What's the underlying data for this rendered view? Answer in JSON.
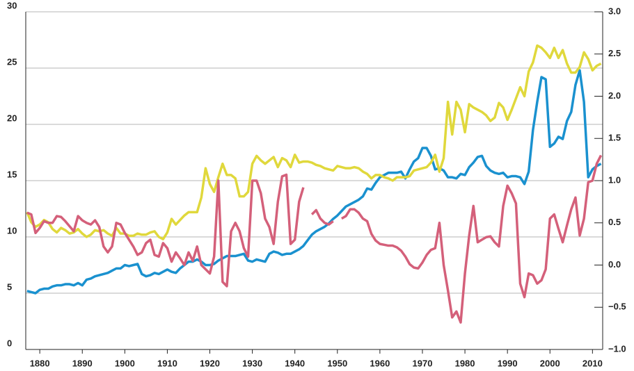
{
  "chart_data": {
    "type": "line",
    "x": [
      1877,
      1878,
      1879,
      1880,
      1881,
      1882,
      1883,
      1884,
      1885,
      1886,
      1887,
      1888,
      1889,
      1890,
      1891,
      1892,
      1893,
      1894,
      1895,
      1896,
      1897,
      1898,
      1899,
      1900,
      1901,
      1902,
      1903,
      1904,
      1905,
      1906,
      1907,
      1908,
      1909,
      1910,
      1911,
      1912,
      1913,
      1914,
      1915,
      1916,
      1917,
      1918,
      1919,
      1920,
      1921,
      1922,
      1923,
      1924,
      1925,
      1926,
      1927,
      1928,
      1929,
      1930,
      1931,
      1932,
      1933,
      1934,
      1935,
      1936,
      1937,
      1938,
      1939,
      1940,
      1941,
      1942,
      1943,
      1944,
      1945,
      1946,
      1947,
      1948,
      1949,
      1950,
      1951,
      1952,
      1953,
      1954,
      1955,
      1956,
      1957,
      1958,
      1959,
      1960,
      1961,
      1962,
      1963,
      1964,
      1965,
      1966,
      1967,
      1968,
      1969,
      1970,
      1971,
      1972,
      1973,
      1974,
      1975,
      1976,
      1977,
      1978,
      1979,
      1980,
      1981,
      1982,
      1983,
      1984,
      1985,
      1986,
      1987,
      1988,
      1989,
      1990,
      1991,
      1992,
      1993,
      1994,
      1995,
      1996,
      1997,
      1998,
      1999,
      2000,
      2001,
      2002,
      2003,
      2004,
      2005,
      2006,
      2007,
      2008,
      2009,
      2010,
      2011,
      2012
    ],
    "series": [
      {
        "color": "#1a91cf",
        "values": [
          5.2,
          5.1,
          5.0,
          5.3,
          5.4,
          5.4,
          5.6,
          5.7,
          5.7,
          5.8,
          5.8,
          5.7,
          5.9,
          5.7,
          6.2,
          6.3,
          6.5,
          6.6,
          6.7,
          6.8,
          7.0,
          7.2,
          7.2,
          7.5,
          7.4,
          7.5,
          7.6,
          6.7,
          6.5,
          6.6,
          6.8,
          6.7,
          6.9,
          7.1,
          6.9,
          6.8,
          7.2,
          7.5,
          7.8,
          7.8,
          8.0,
          7.8,
          7.5,
          7.5,
          7.6,
          7.9,
          8.1,
          8.3,
          8.3,
          8.3,
          8.4,
          8.5,
          7.9,
          7.8,
          8.0,
          7.9,
          7.8,
          8.5,
          8.7,
          8.6,
          8.4,
          8.5,
          8.5,
          8.7,
          8.9,
          9.2,
          9.7,
          10.2,
          10.5,
          10.7,
          10.9,
          11.2,
          11.6,
          11.9,
          12.3,
          12.7,
          12.9,
          13.1,
          13.3,
          13.6,
          14.3,
          14.2,
          14.8,
          15.3,
          15.5,
          15.7,
          15.7,
          15.7,
          15.8,
          15.2,
          16.0,
          16.7,
          17.0,
          17.9,
          17.9,
          17.2,
          16.0,
          16.1,
          15.9,
          15.3,
          15.3,
          15.2,
          15.6,
          15.5,
          16.2,
          16.6,
          17.1,
          17.2,
          16.3,
          15.9,
          15.7,
          15.6,
          15.7,
          15.3,
          15.4,
          15.4,
          15.3,
          14.7,
          15.8,
          19.5,
          22.0,
          24.2,
          24.0,
          18.0,
          18.3,
          18.9,
          18.7,
          20.3,
          21.1,
          23.5,
          24.8,
          22.0,
          15.3,
          16.0,
          16.3,
          16.5
        ]
      },
      {
        "color": "#e0d83c",
        "values": [
          12.2,
          11.3,
          10.9,
          11.1,
          11.5,
          11.3,
          10.7,
          10.4,
          10.8,
          10.6,
          10.3,
          10.4,
          10.7,
          10.3,
          10.0,
          10.2,
          10.6,
          10.5,
          10.6,
          10.3,
          10.1,
          10.8,
          10.3,
          10.3,
          10.1,
          10.1,
          10.3,
          10.2,
          10.2,
          10.4,
          10.5,
          10.0,
          9.8,
          10.4,
          11.6,
          11.1,
          11.5,
          11.9,
          12.2,
          12.2,
          12.2,
          13.5,
          16.1,
          14.7,
          14.0,
          15.3,
          16.5,
          15.5,
          15.5,
          15.2,
          13.6,
          13.6,
          14.0,
          16.5,
          17.2,
          16.8,
          16.5,
          16.8,
          17.1,
          16.2,
          17.0,
          16.8,
          16.2,
          17.3,
          16.6,
          16.7,
          16.7,
          16.6,
          16.4,
          16.3,
          16.1,
          16.0,
          15.9,
          16.3,
          16.2,
          16.1,
          16.1,
          16.2,
          16.1,
          15.8,
          15.6,
          15.2,
          15.5,
          15.5,
          15.3,
          15.2,
          15.0,
          15.3,
          15.3,
          15.3,
          15.4,
          15.9,
          16.0,
          16.1,
          16.2,
          16.6,
          17.3,
          15.8,
          17.0,
          22.0,
          19.1,
          22.0,
          21.3,
          19.3,
          21.8,
          21.5,
          21.3,
          21.1,
          20.8,
          20.3,
          20.6,
          21.9,
          21.5,
          20.4,
          21.3,
          22.3,
          23.3,
          22.5,
          24.7,
          25.5,
          27.0,
          26.8,
          26.4,
          25.9,
          26.8,
          25.9,
          26.6,
          25.4,
          24.6,
          24.6,
          25.1,
          26.4,
          25.8,
          24.8,
          25.2,
          25.4
        ]
      },
      {
        "color": "#d4607a",
        "axis": "y2",
        "values": [
          0.62,
          0.6,
          0.38,
          0.44,
          0.52,
          0.5,
          0.5,
          0.58,
          0.57,
          0.52,
          0.46,
          0.4,
          0.58,
          0.53,
          0.5,
          0.48,
          0.53,
          0.45,
          0.22,
          0.15,
          0.22,
          0.5,
          0.48,
          0.38,
          0.3,
          0.22,
          0.12,
          0.15,
          0.26,
          0.3,
          0.12,
          0.1,
          0.26,
          0.2,
          0.04,
          0.15,
          0.08,
          0.0,
          0.15,
          0.05,
          0.22,
          0.0,
          -0.05,
          -0.1,
          0.1,
          1.0,
          -0.2,
          -0.25,
          0.4,
          0.5,
          0.4,
          0.2,
          0.1,
          1.0,
          1.0,
          0.85,
          0.55,
          0.45,
          0.25,
          0.75,
          1.05,
          1.07,
          0.25,
          0.3,
          0.75,
          0.92,
          null,
          0.6,
          0.65,
          0.55,
          0.5,
          0.48,
          0.52,
          null,
          0.55,
          0.58,
          0.66,
          0.66,
          0.62,
          0.55,
          0.52,
          0.37,
          0.29,
          0.25,
          0.24,
          0.23,
          0.23,
          0.21,
          0.17,
          0.1,
          0.01,
          -0.03,
          -0.04,
          0.03,
          0.12,
          0.18,
          0.2,
          0.5,
          0.0,
          -0.3,
          -0.62,
          -0.55,
          -0.68,
          -0.1,
          0.35,
          0.7,
          0.27,
          0.3,
          0.33,
          0.34,
          0.27,
          0.22,
          0.7,
          0.94,
          0.85,
          0.73,
          -0.22,
          -0.38,
          -0.1,
          -0.12,
          -0.22,
          -0.18,
          -0.05,
          0.55,
          0.6,
          0.43,
          0.27,
          0.47,
          0.66,
          0.8,
          0.35,
          0.55,
          0.98,
          1.0,
          1.2,
          1.3
        ]
      }
    ],
    "xlim": [
      1876.7,
      2012.4
    ],
    "xticks": [
      1880,
      1890,
      1900,
      1910,
      1920,
      1930,
      1940,
      1950,
      1960,
      1970,
      1980,
      1990,
      2000,
      2010
    ],
    "ylim": [
      0,
      30
    ],
    "yticks": [
      0,
      5,
      10,
      15,
      20,
      25,
      30
    ],
    "y2lim": [
      -1,
      3
    ],
    "y2ticks": [
      {
        "value": -1,
        "label": "−1.0"
      },
      {
        "value": -0.5,
        "label": "−0.5"
      },
      {
        "value": 0,
        "label": "0.0"
      },
      {
        "value": 0.5,
        "label": "0.5"
      },
      {
        "value": 1,
        "label": "1.0"
      },
      {
        "value": 1.5,
        "label": "1.5"
      },
      {
        "value": 2,
        "label": "2.0"
      },
      {
        "value": 2.5,
        "label": "2.5"
      },
      {
        "value": 3,
        "label": "3.0"
      }
    ],
    "grid": true
  }
}
